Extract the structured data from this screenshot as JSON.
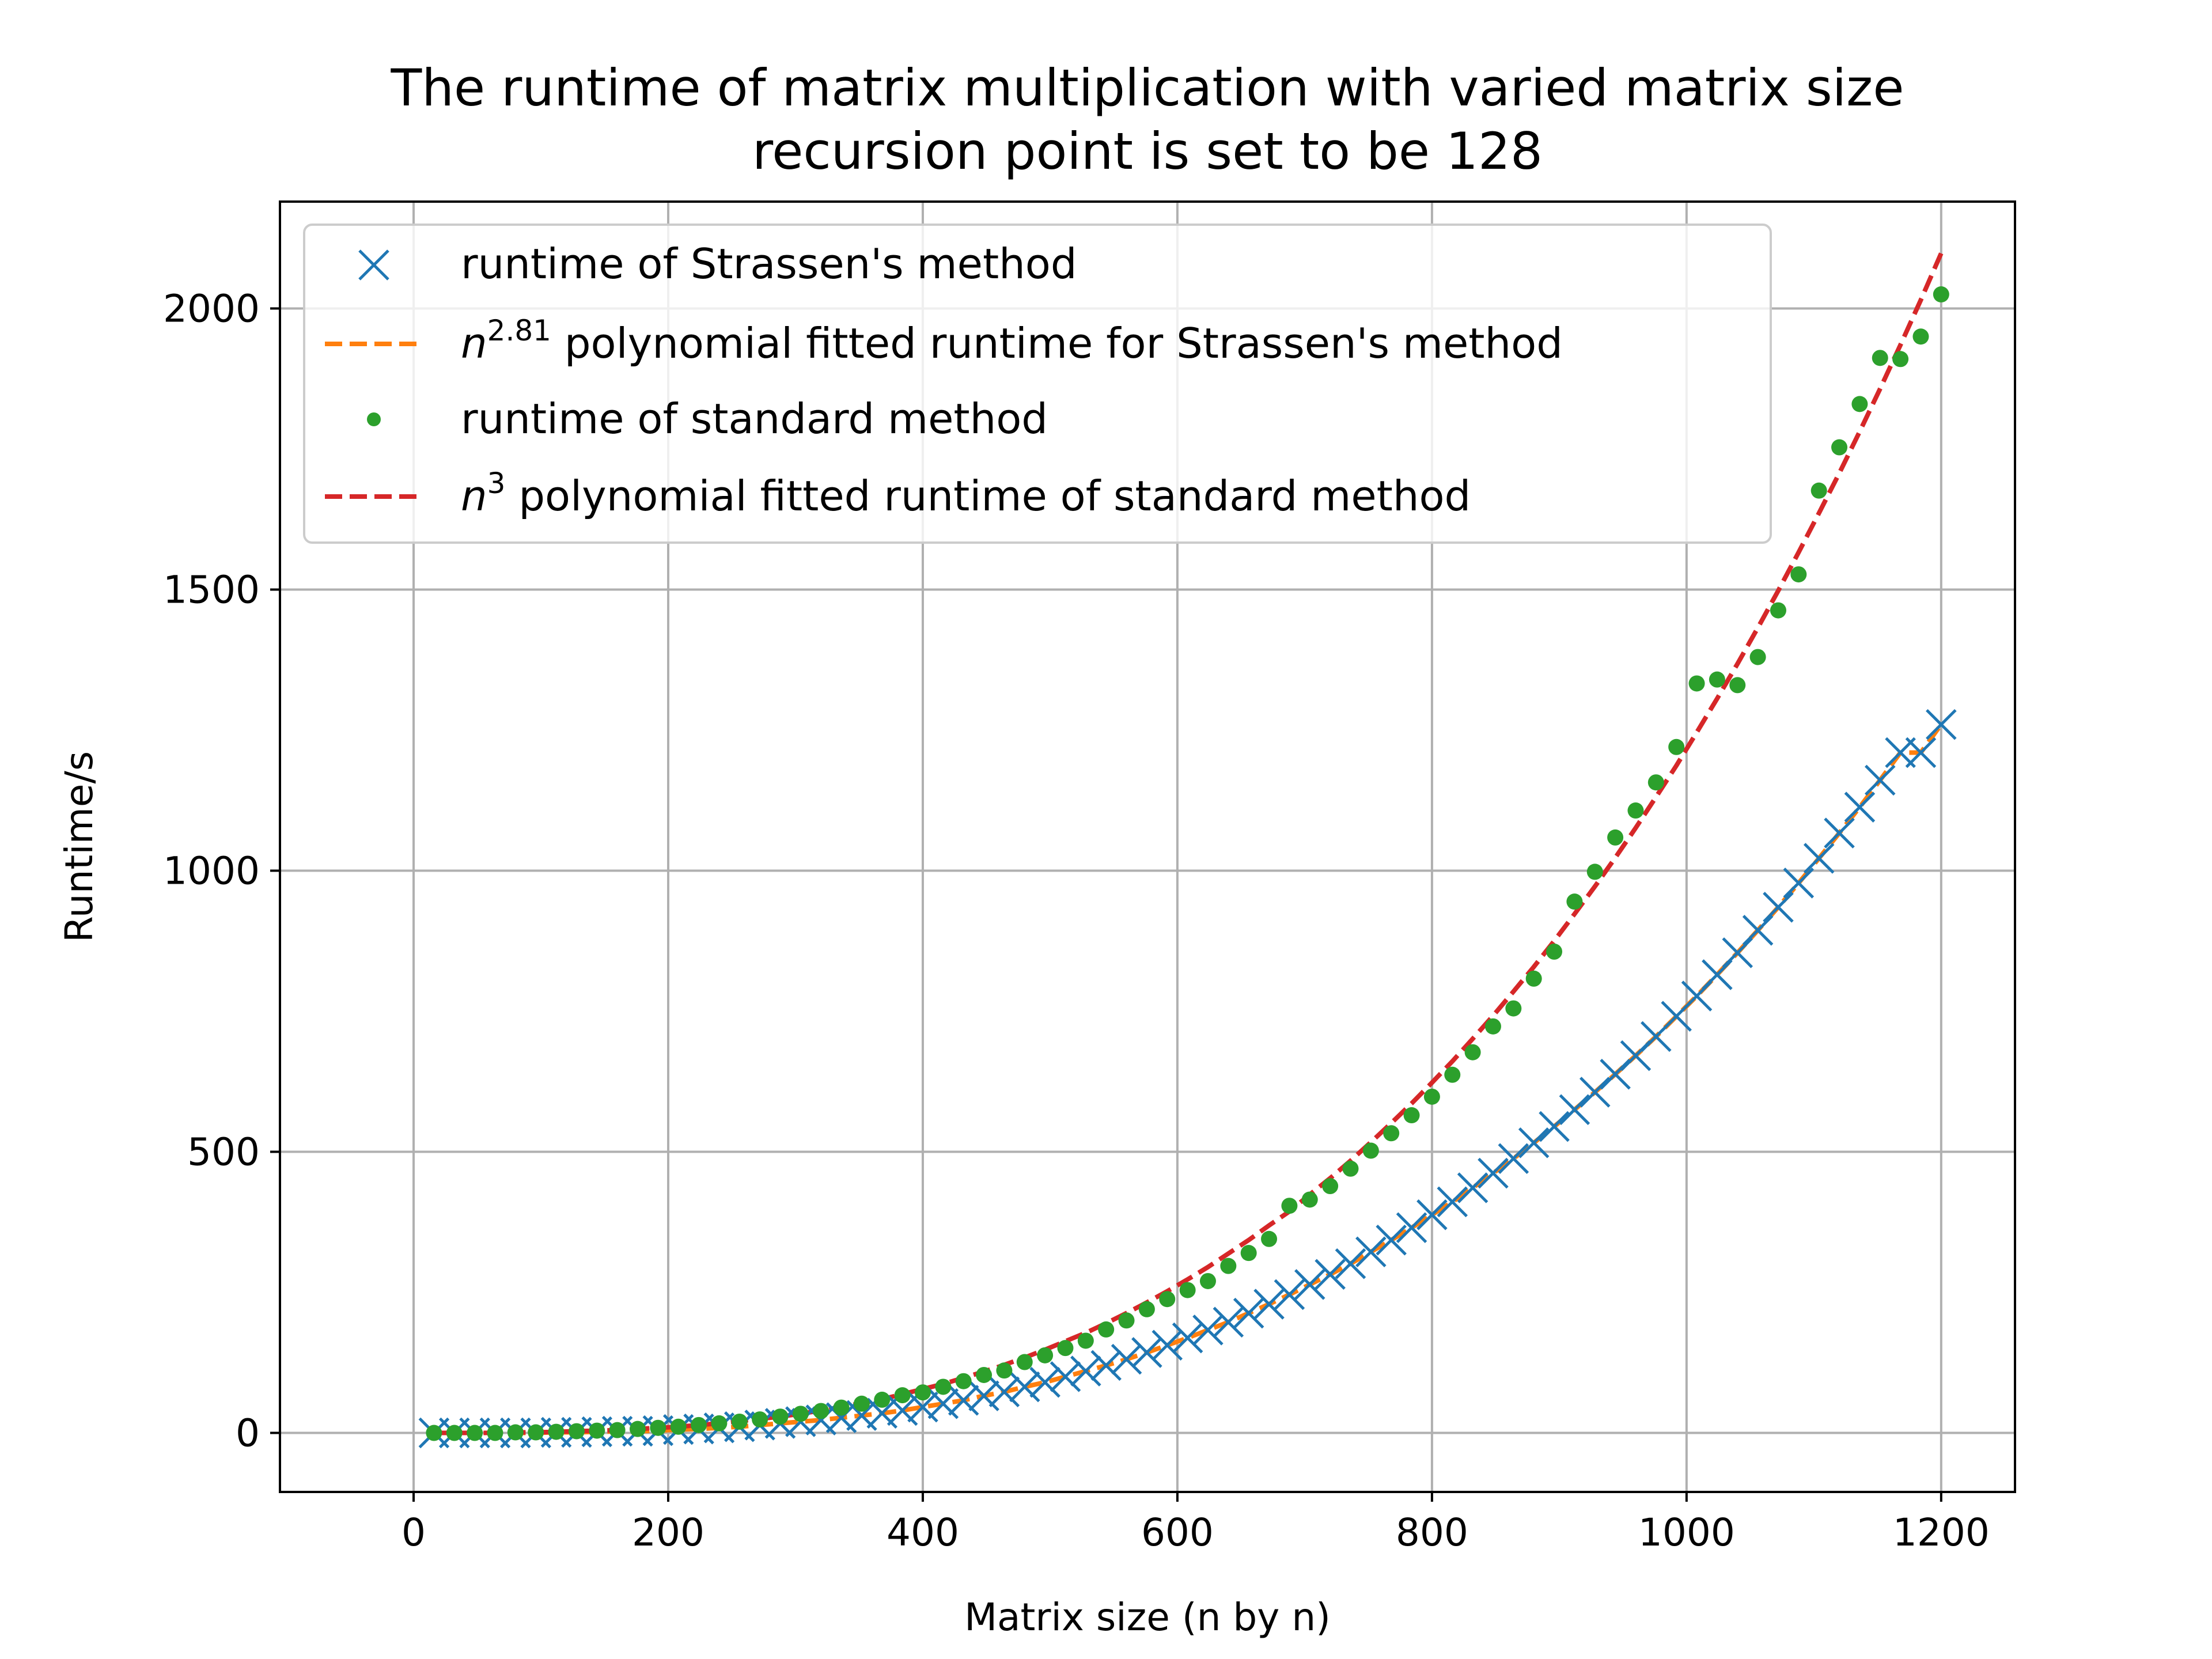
{
  "chart_data": {
    "type": "scatter",
    "title": "The runtime of matrix multiplication with varied matrix size",
    "subtitle": "recursion point is set to be 128",
    "xlabel": "Matrix size (n by n)",
    "ylabel": "Runtime/s",
    "xlim": [
      -105,
      1258
    ],
    "ylim": [
      -105,
      2190
    ],
    "xticks": [
      0,
      200,
      400,
      600,
      800,
      1000,
      1200
    ],
    "yticks": [
      0,
      500,
      1000,
      1500,
      2000
    ],
    "grid": true,
    "legend_position": "top-left",
    "x": [
      16,
      32,
      48,
      64,
      80,
      96,
      112,
      128,
      144,
      160,
      176,
      192,
      208,
      224,
      240,
      256,
      272,
      288,
      304,
      320,
      336,
      352,
      368,
      384,
      400,
      416,
      432,
      448,
      464,
      480,
      496,
      512,
      528,
      544,
      560,
      576,
      592,
      608,
      624,
      640,
      656,
      672,
      688,
      704,
      720,
      736,
      752,
      768,
      784,
      800,
      816,
      832,
      848,
      864,
      880,
      896,
      912,
      928,
      944,
      960,
      976,
      992,
      1008,
      1024,
      1040,
      1056,
      1072,
      1088,
      1104,
      1120,
      1136,
      1152,
      1168,
      1184,
      1200
    ],
    "series": [
      {
        "name": "runtime of Strassen's method",
        "style": "x-marker",
        "color": "#1f77b4",
        "values": [
          0,
          0,
          0,
          0,
          0,
          0,
          1,
          1,
          2,
          3,
          3,
          4,
          6,
          7,
          9,
          11,
          14,
          17,
          20,
          23,
          27,
          31,
          35,
          40,
          46,
          52,
          58,
          66,
          73,
          82,
          90,
          100,
          110,
          120,
          131,
          143,
          156,
          169,
          183,
          197,
          213,
          229,
          246,
          264,
          282,
          301,
          322,
          343,
          365,
          388,
          411,
          436,
          462,
          488,
          516,
          545,
          575,
          606,
          638,
          671,
          705,
          741,
          777,
          815,
          854,
          894,
          935,
          978,
          1022,
          1067,
          1113,
          1161,
          1210,
          1210,
          1260
        ]
      },
      {
        "name": "n^2.81 polynomial fitted runtime for Strassen's method",
        "style": "dashed-line",
        "color": "#ff7f0e",
        "values": [
          0,
          0,
          0,
          0,
          0,
          0,
          1,
          1,
          2,
          3,
          3,
          4,
          6,
          7,
          9,
          11,
          14,
          17,
          20,
          23,
          27,
          31,
          35,
          40,
          46,
          52,
          58,
          66,
          73,
          82,
          90,
          100,
          110,
          120,
          131,
          143,
          156,
          169,
          183,
          197,
          213,
          229,
          246,
          264,
          282,
          301,
          322,
          343,
          365,
          388,
          411,
          436,
          462,
          488,
          516,
          545,
          575,
          606,
          638,
          671,
          705,
          741,
          777,
          815,
          854,
          894,
          935,
          978,
          1022,
          1067,
          1113,
          1161,
          1210,
          1210,
          1260
        ]
      },
      {
        "name": "runtime of standard method",
        "style": "dot-marker",
        "color": "#2ca02c",
        "values": [
          0,
          0,
          0,
          0,
          1,
          1,
          2,
          3,
          4,
          5,
          7,
          9,
          11,
          14,
          17,
          20,
          24,
          29,
          34,
          39,
          45,
          52,
          59,
          67,
          72,
          82,
          92,
          103,
          111,
          126,
          138,
          151,
          164,
          184,
          200,
          220,
          238,
          254,
          270,
          297,
          320,
          345,
          404,
          415,
          439,
          470,
          502,
          533,
          565,
          598,
          637,
          677,
          723,
          755,
          808,
          856,
          945,
          998,
          1059,
          1107,
          1157,
          1220,
          1333,
          1340,
          1330,
          1380,
          1463,
          1527,
          1676,
          1753,
          1830,
          1912,
          1910,
          1950,
          2025
        ]
      },
      {
        "name": "n^3 polynomial fitted runtime of standard method",
        "style": "dashed-line",
        "color": "#d62728",
        "values": [
          0,
          0,
          0,
          0,
          1,
          1,
          2,
          3,
          4,
          5,
          7,
          9,
          11,
          14,
          17,
          21,
          25,
          29,
          34,
          40,
          46,
          53,
          60,
          69,
          78,
          87,
          98,
          109,
          121,
          134,
          148,
          163,
          178,
          195,
          213,
          232,
          252,
          273,
          295,
          319,
          343,
          369,
          394,
          424,
          453,
          484,
          517,
          551,
          586,
          623,
          661,
          701,
          742,
          785,
          829,
          875,
          923,
          972,
          1023,
          1076,
          1131,
          1187,
          1246,
          1306,
          1368,
          1432,
          1498,
          1566,
          1636,
          1707,
          1781,
          1857,
          1935,
          2015,
          2098
        ]
      }
    ],
    "legend": [
      {
        "text": "runtime of Strassen's method"
      },
      {
        "base": "n",
        "exp": "2.81",
        "text": " polynomial fitted runtime for Strassen's method"
      },
      {
        "text": "runtime of standard method"
      },
      {
        "base": "n",
        "exp": "3",
        "text": " polynomial fitted runtime of standard method"
      }
    ]
  }
}
